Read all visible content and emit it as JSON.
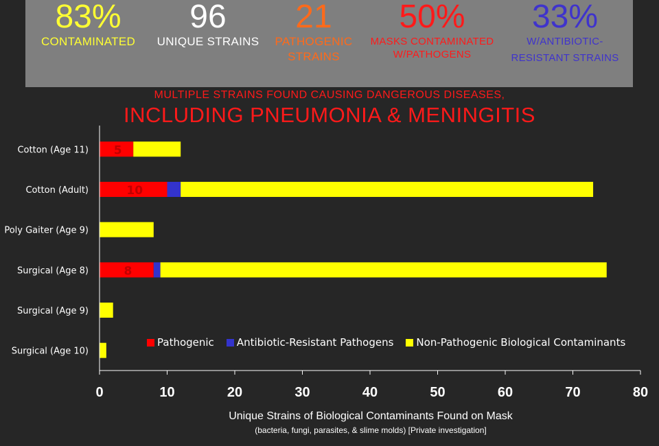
{
  "stats": [
    {
      "value": "83%",
      "label_lines": [
        "CONTAMINATED"
      ],
      "color": "#ffff33"
    },
    {
      "value": "96",
      "label_lines": [
        "UNIQUE STRAINS"
      ],
      "color": "#ffffff"
    },
    {
      "value": "21",
      "label_lines": [
        "PATHOGENIC",
        "STRAINS"
      ],
      "color": "#ff6a1a"
    },
    {
      "value": "50%",
      "label_lines": [
        "MASKS  CONTAMINATED",
        "W/PATHOGENS"
      ],
      "color": "#ff1a1a"
    },
    {
      "value": "33%",
      "label_lines": [
        "W/ANTIBIOTIC-",
        "RESISTANT  STRAINS"
      ],
      "color": "#3f33cc"
    }
  ],
  "subhead": "MULTIPLE STRAINS FOUND CAUSING DANGEROUS DISEASES,",
  "headline": "INCLUDING PNEUMONIA & MENINGITIS",
  "colors": {
    "pathogenic": "#ff0000",
    "resistant": "#3333cc",
    "non_pathogenic": "#ffff00",
    "axis": "#ffffff",
    "label": "#c00000"
  },
  "chart_data": {
    "type": "bar",
    "orientation": "horizontal",
    "stacked": true,
    "categories": [
      "Cotton (Age 11)",
      "Cotton (Adult)",
      "Poly Gaiter (Age 9)",
      "Surgical (Age 8)",
      "Surgical (Age 9)",
      "Surgical (Age 10)"
    ],
    "series": [
      {
        "name": "Pathogenic",
        "values": [
          5,
          10,
          0,
          8,
          0,
          0
        ],
        "data_labels": [
          "5",
          "10",
          "",
          "8",
          "",
          ""
        ]
      },
      {
        "name": "Antibiotic-Resistant Pathogens",
        "values": [
          0,
          2,
          0,
          1,
          0,
          0
        ]
      },
      {
        "name": "Non-Pathogenic Biological Contaminants",
        "values": [
          7,
          61,
          8,
          66,
          2,
          1
        ]
      }
    ],
    "xlim": [
      0,
      80
    ],
    "xticks": [
      "0",
      "10",
      "20",
      "30",
      "40",
      "50",
      "60",
      "70",
      "80"
    ],
    "xlabel": "Unique Strains of Biological Contaminants Found on Mask",
    "xlabel_note": "(bacteria, fungi, parasites, & slime molds) [Private investigation]",
    "legend_position": "bottom-right",
    "grid": false
  }
}
